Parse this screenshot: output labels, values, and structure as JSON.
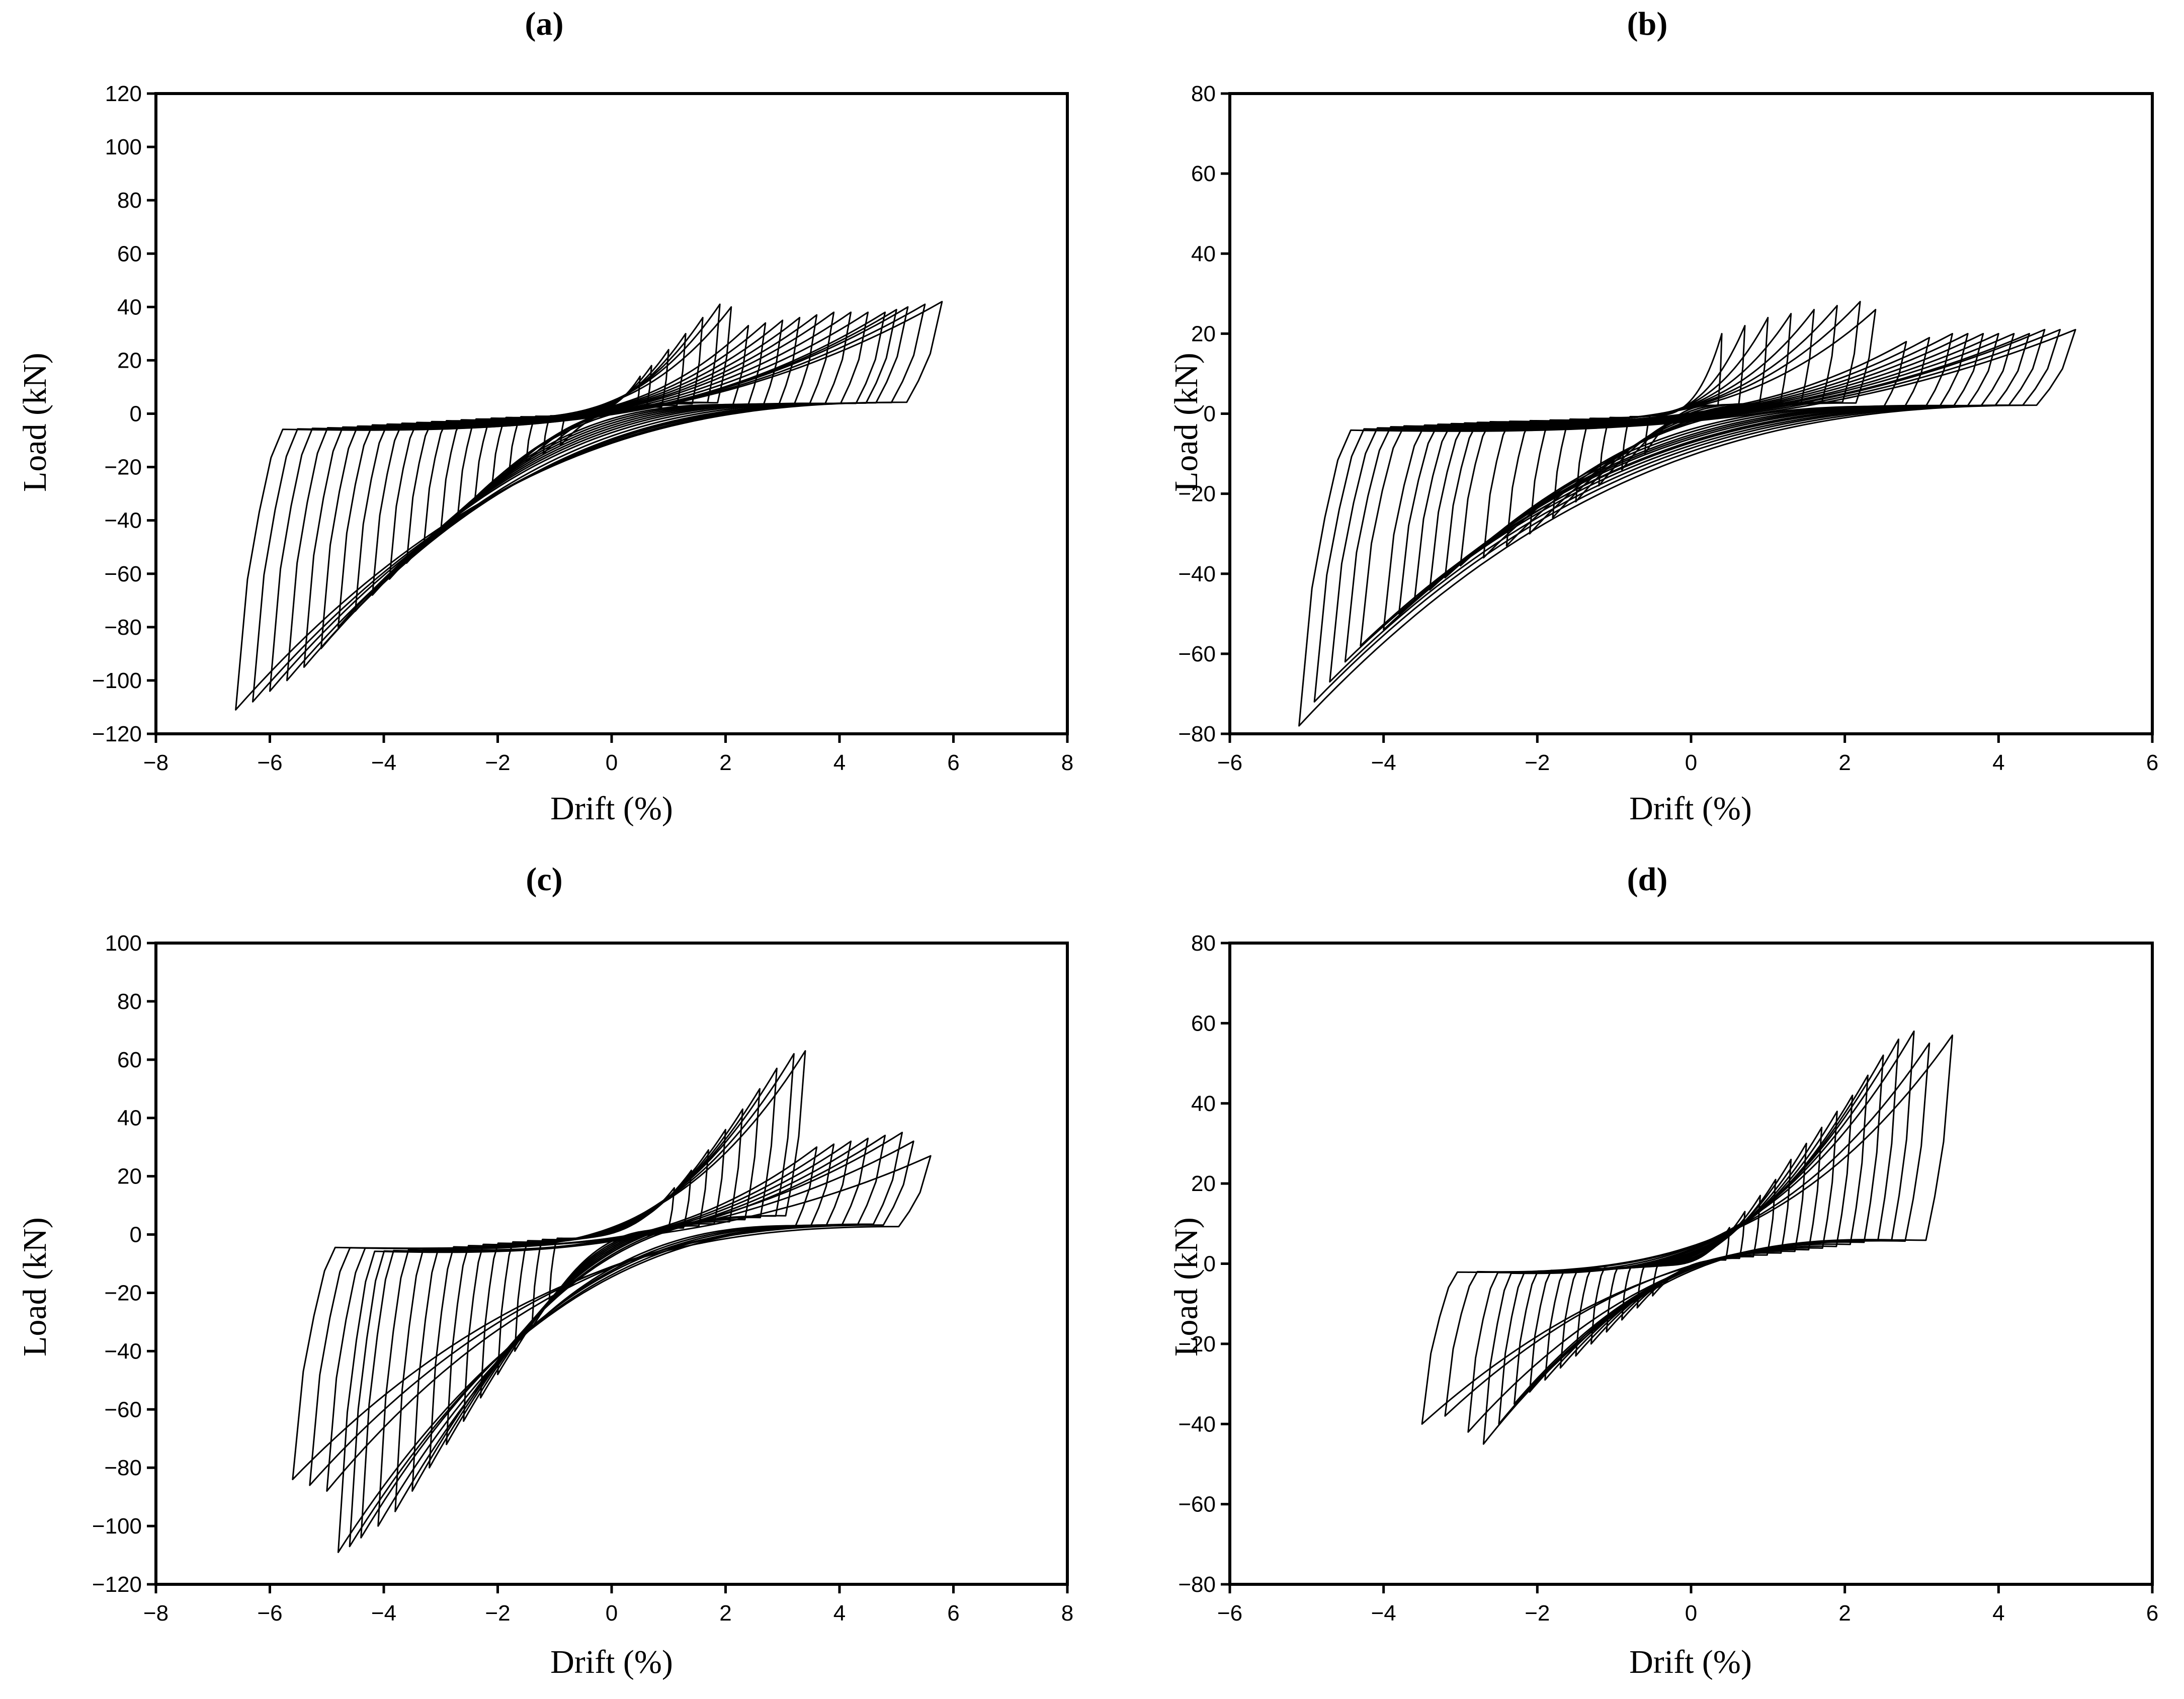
{
  "chart_data": [
    {
      "panel": "(a)",
      "type": "line",
      "xlabel": "Drift  (%)",
      "ylabel": "Load (kN)",
      "xlim": [
        -8,
        8
      ],
      "ylim": [
        -120,
        120
      ],
      "xticks": [
        -8,
        -6,
        -4,
        -2,
        0,
        2,
        4,
        6,
        8
      ],
      "yticks": [
        -120,
        -100,
        -80,
        -60,
        -40,
        -20,
        0,
        20,
        40,
        60,
        80,
        100,
        120
      ],
      "x_tick_labels": [
        "−8",
        "−6",
        "−4",
        "−2",
        "0",
        "2",
        "4",
        "6",
        "8"
      ],
      "y_tick_labels": [
        "−120",
        "−100",
        "−80",
        "−60",
        "−40",
        "−20",
        "0",
        "20",
        "40",
        "60",
        "80",
        "100",
        "120"
      ],
      "loops": [
        {
          "xmin": -6.6,
          "ymin": -111,
          "xmax": 5.8,
          "ymax": 42
        },
        {
          "xmin": -6.3,
          "ymin": -108,
          "xmax": 5.5,
          "ymax": 41
        },
        {
          "xmin": -6.0,
          "ymin": -104,
          "xmax": 5.2,
          "ymax": 40
        },
        {
          "xmin": -5.7,
          "ymin": -100,
          "xmax": 5.0,
          "ymax": 39
        },
        {
          "xmin": -5.4,
          "ymin": -95,
          "xmax": 4.8,
          "ymax": 38
        },
        {
          "xmin": -5.1,
          "ymin": -88,
          "xmax": 4.5,
          "ymax": 38
        },
        {
          "xmin": -4.8,
          "ymin": -80,
          "xmax": 4.2,
          "ymax": 38
        },
        {
          "xmin": -4.5,
          "ymin": -74,
          "xmax": 3.9,
          "ymax": 38
        },
        {
          "xmin": -4.2,
          "ymin": -68,
          "xmax": 3.6,
          "ymax": 37
        },
        {
          "xmin": -3.9,
          "ymin": -62,
          "xmax": 3.3,
          "ymax": 36
        },
        {
          "xmin": -3.6,
          "ymin": -56,
          "xmax": 3.0,
          "ymax": 35
        },
        {
          "xmin": -3.3,
          "ymin": -50,
          "xmax": 2.7,
          "ymax": 34
        },
        {
          "xmin": -3.0,
          "ymin": -44,
          "xmax": 2.4,
          "ymax": 33
        },
        {
          "xmin": -2.7,
          "ymin": -38,
          "xmax": 2.1,
          "ymax": 40
        },
        {
          "xmin": -2.4,
          "ymin": -32,
          "xmax": 1.9,
          "ymax": 41
        },
        {
          "xmin": -2.1,
          "ymin": -27,
          "xmax": 1.6,
          "ymax": 36
        },
        {
          "xmin": -1.8,
          "ymin": -22,
          "xmax": 1.3,
          "ymax": 30
        },
        {
          "xmin": -1.5,
          "ymin": -18,
          "xmax": 1.0,
          "ymax": 24
        },
        {
          "xmin": -1.2,
          "ymin": -15,
          "xmax": 0.7,
          "ymax": 18
        },
        {
          "xmin": -0.9,
          "ymin": -12,
          "xmax": 0.5,
          "ymax": 14
        }
      ]
    },
    {
      "panel": "(b)",
      "type": "line",
      "xlabel": "Drift  (%)",
      "ylabel": "Load (kN)",
      "xlim": [
        -6,
        6
      ],
      "ylim": [
        -80,
        80
      ],
      "xticks": [
        -6,
        -4,
        -2,
        0,
        2,
        4,
        6
      ],
      "yticks": [
        -80,
        -60,
        -40,
        -20,
        0,
        20,
        40,
        60,
        80
      ],
      "x_tick_labels": [
        "−6",
        "−4",
        "−2",
        "0",
        "2",
        "4",
        "6"
      ],
      "y_tick_labels": [
        "−80",
        "−60",
        "−40",
        "−20",
        "0",
        "20",
        "40",
        "60",
        "80"
      ],
      "loops": [
        {
          "xmin": -5.1,
          "ymin": -78,
          "xmax": 5.0,
          "ymax": 21
        },
        {
          "xmin": -4.9,
          "ymin": -72,
          "xmax": 4.8,
          "ymax": 21
        },
        {
          "xmin": -4.7,
          "ymin": -67,
          "xmax": 4.6,
          "ymax": 21
        },
        {
          "xmin": -4.5,
          "ymin": -62,
          "xmax": 4.4,
          "ymax": 20
        },
        {
          "xmin": -4.3,
          "ymin": -58,
          "xmax": 4.2,
          "ymax": 20
        },
        {
          "xmin": -4.0,
          "ymin": -54,
          "xmax": 4.0,
          "ymax": 20
        },
        {
          "xmin": -3.8,
          "ymin": -50,
          "xmax": 3.8,
          "ymax": 20
        },
        {
          "xmin": -3.6,
          "ymin": -47,
          "xmax": 3.6,
          "ymax": 20
        },
        {
          "xmin": -3.4,
          "ymin": -44,
          "xmax": 3.4,
          "ymax": 20
        },
        {
          "xmin": -3.2,
          "ymin": -41,
          "xmax": 3.1,
          "ymax": 19
        },
        {
          "xmin": -3.0,
          "ymin": -38,
          "xmax": 2.8,
          "ymax": 18
        },
        {
          "xmin": -2.7,
          "ymin": -36,
          "xmax": 2.4,
          "ymax": 26
        },
        {
          "xmin": -2.4,
          "ymin": -33,
          "xmax": 2.2,
          "ymax": 28
        },
        {
          "xmin": -2.1,
          "ymin": -30,
          "xmax": 1.9,
          "ymax": 27
        },
        {
          "xmin": -1.8,
          "ymin": -26,
          "xmax": 1.6,
          "ymax": 26
        },
        {
          "xmin": -1.5,
          "ymin": -22,
          "xmax": 1.3,
          "ymax": 25
        },
        {
          "xmin": -1.2,
          "ymin": -18,
          "xmax": 1.0,
          "ymax": 24
        },
        {
          "xmin": -0.9,
          "ymin": -14,
          "xmax": 0.7,
          "ymax": 22
        },
        {
          "xmin": -0.6,
          "ymin": -10,
          "xmax": 0.4,
          "ymax": 20
        }
      ]
    },
    {
      "panel": "(c)",
      "type": "line",
      "xlabel": "Drift  (%)",
      "ylabel": "Load (kN)",
      "xlim": [
        -8,
        8
      ],
      "ylim": [
        -120,
        100
      ],
      "xticks": [
        -8,
        -6,
        -4,
        -2,
        0,
        2,
        4,
        6,
        8
      ],
      "yticks": [
        -120,
        -100,
        -80,
        -60,
        -40,
        -20,
        0,
        20,
        40,
        60,
        80,
        100
      ],
      "x_tick_labels": [
        "−8",
        "−6",
        "−4",
        "−2",
        "0",
        "2",
        "4",
        "6",
        "8"
      ],
      "y_tick_labels": [
        "−120",
        "−100",
        "−80",
        "−60",
        "−40",
        "−20",
        "0",
        "20",
        "40",
        "60",
        "80",
        "100"
      ],
      "loops": [
        {
          "xmin": -5.6,
          "ymin": -84,
          "xmax": 5.6,
          "ymax": 27
        },
        {
          "xmin": -5.3,
          "ymin": -86,
          "xmax": 5.3,
          "ymax": 32
        },
        {
          "xmin": -5.0,
          "ymin": -88,
          "xmax": 5.1,
          "ymax": 35
        },
        {
          "xmin": -4.8,
          "ymin": -109,
          "xmax": 4.8,
          "ymax": 34
        },
        {
          "xmin": -4.6,
          "ymin": -107,
          "xmax": 4.5,
          "ymax": 33
        },
        {
          "xmin": -4.4,
          "ymin": -104,
          "xmax": 4.2,
          "ymax": 32
        },
        {
          "xmin": -4.1,
          "ymin": -100,
          "xmax": 3.9,
          "ymax": 31
        },
        {
          "xmin": -3.8,
          "ymin": -95,
          "xmax": 3.6,
          "ymax": 30
        },
        {
          "xmin": -3.5,
          "ymin": -88,
          "xmax": 3.4,
          "ymax": 63
        },
        {
          "xmin": -3.2,
          "ymin": -80,
          "xmax": 3.2,
          "ymax": 62
        },
        {
          "xmin": -2.9,
          "ymin": -72,
          "xmax": 2.9,
          "ymax": 57
        },
        {
          "xmin": -2.6,
          "ymin": -64,
          "xmax": 2.6,
          "ymax": 50
        },
        {
          "xmin": -2.3,
          "ymin": -56,
          "xmax": 2.3,
          "ymax": 43
        },
        {
          "xmin": -2.0,
          "ymin": -48,
          "xmax": 2.0,
          "ymax": 36
        },
        {
          "xmin": -1.7,
          "ymin": -40,
          "xmax": 1.7,
          "ymax": 29
        },
        {
          "xmin": -1.4,
          "ymin": -32,
          "xmax": 1.4,
          "ymax": 22
        },
        {
          "xmin": -1.1,
          "ymin": -24,
          "xmax": 1.1,
          "ymax": 16
        }
      ]
    },
    {
      "panel": "(d)",
      "type": "line",
      "xlabel": "Drift  (%)",
      "ylabel": "Load (kN)",
      "xlim": [
        -6,
        6
      ],
      "ylim": [
        -80,
        80
      ],
      "xticks": [
        -6,
        -4,
        -2,
        0,
        2,
        4,
        6
      ],
      "yticks": [
        -80,
        -60,
        -40,
        -20,
        0,
        20,
        40,
        60,
        80
      ],
      "x_tick_labels": [
        "−6",
        "−4",
        "−2",
        "0",
        "2",
        "4",
        "6"
      ],
      "y_tick_labels": [
        "−80",
        "−60",
        "−40",
        "−20",
        "0",
        "20",
        "40",
        "60",
        "80"
      ],
      "loops": [
        {
          "xmin": -3.5,
          "ymin": -40,
          "xmax": 3.4,
          "ymax": 57
        },
        {
          "xmin": -3.2,
          "ymin": -38,
          "xmax": 3.1,
          "ymax": 55
        },
        {
          "xmin": -2.9,
          "ymin": -42,
          "xmax": 2.9,
          "ymax": 58
        },
        {
          "xmin": -2.7,
          "ymin": -45,
          "xmax": 2.7,
          "ymax": 56
        },
        {
          "xmin": -2.5,
          "ymin": -40,
          "xmax": 2.5,
          "ymax": 52
        },
        {
          "xmin": -2.3,
          "ymin": -35,
          "xmax": 2.3,
          "ymax": 47
        },
        {
          "xmin": -2.1,
          "ymin": -32,
          "xmax": 2.1,
          "ymax": 42
        },
        {
          "xmin": -1.9,
          "ymin": -29,
          "xmax": 1.9,
          "ymax": 38
        },
        {
          "xmin": -1.7,
          "ymin": -26,
          "xmax": 1.7,
          "ymax": 34
        },
        {
          "xmin": -1.5,
          "ymin": -23,
          "xmax": 1.5,
          "ymax": 30
        },
        {
          "xmin": -1.3,
          "ymin": -20,
          "xmax": 1.3,
          "ymax": 26
        },
        {
          "xmin": -1.1,
          "ymin": -17,
          "xmax": 1.1,
          "ymax": 21
        },
        {
          "xmin": -0.9,
          "ymin": -14,
          "xmax": 0.9,
          "ymax": 17
        },
        {
          "xmin": -0.7,
          "ymin": -11,
          "xmax": 0.7,
          "ymax": 13
        },
        {
          "xmin": -0.5,
          "ymin": -8,
          "xmax": 0.5,
          "ymax": 9
        }
      ]
    }
  ]
}
